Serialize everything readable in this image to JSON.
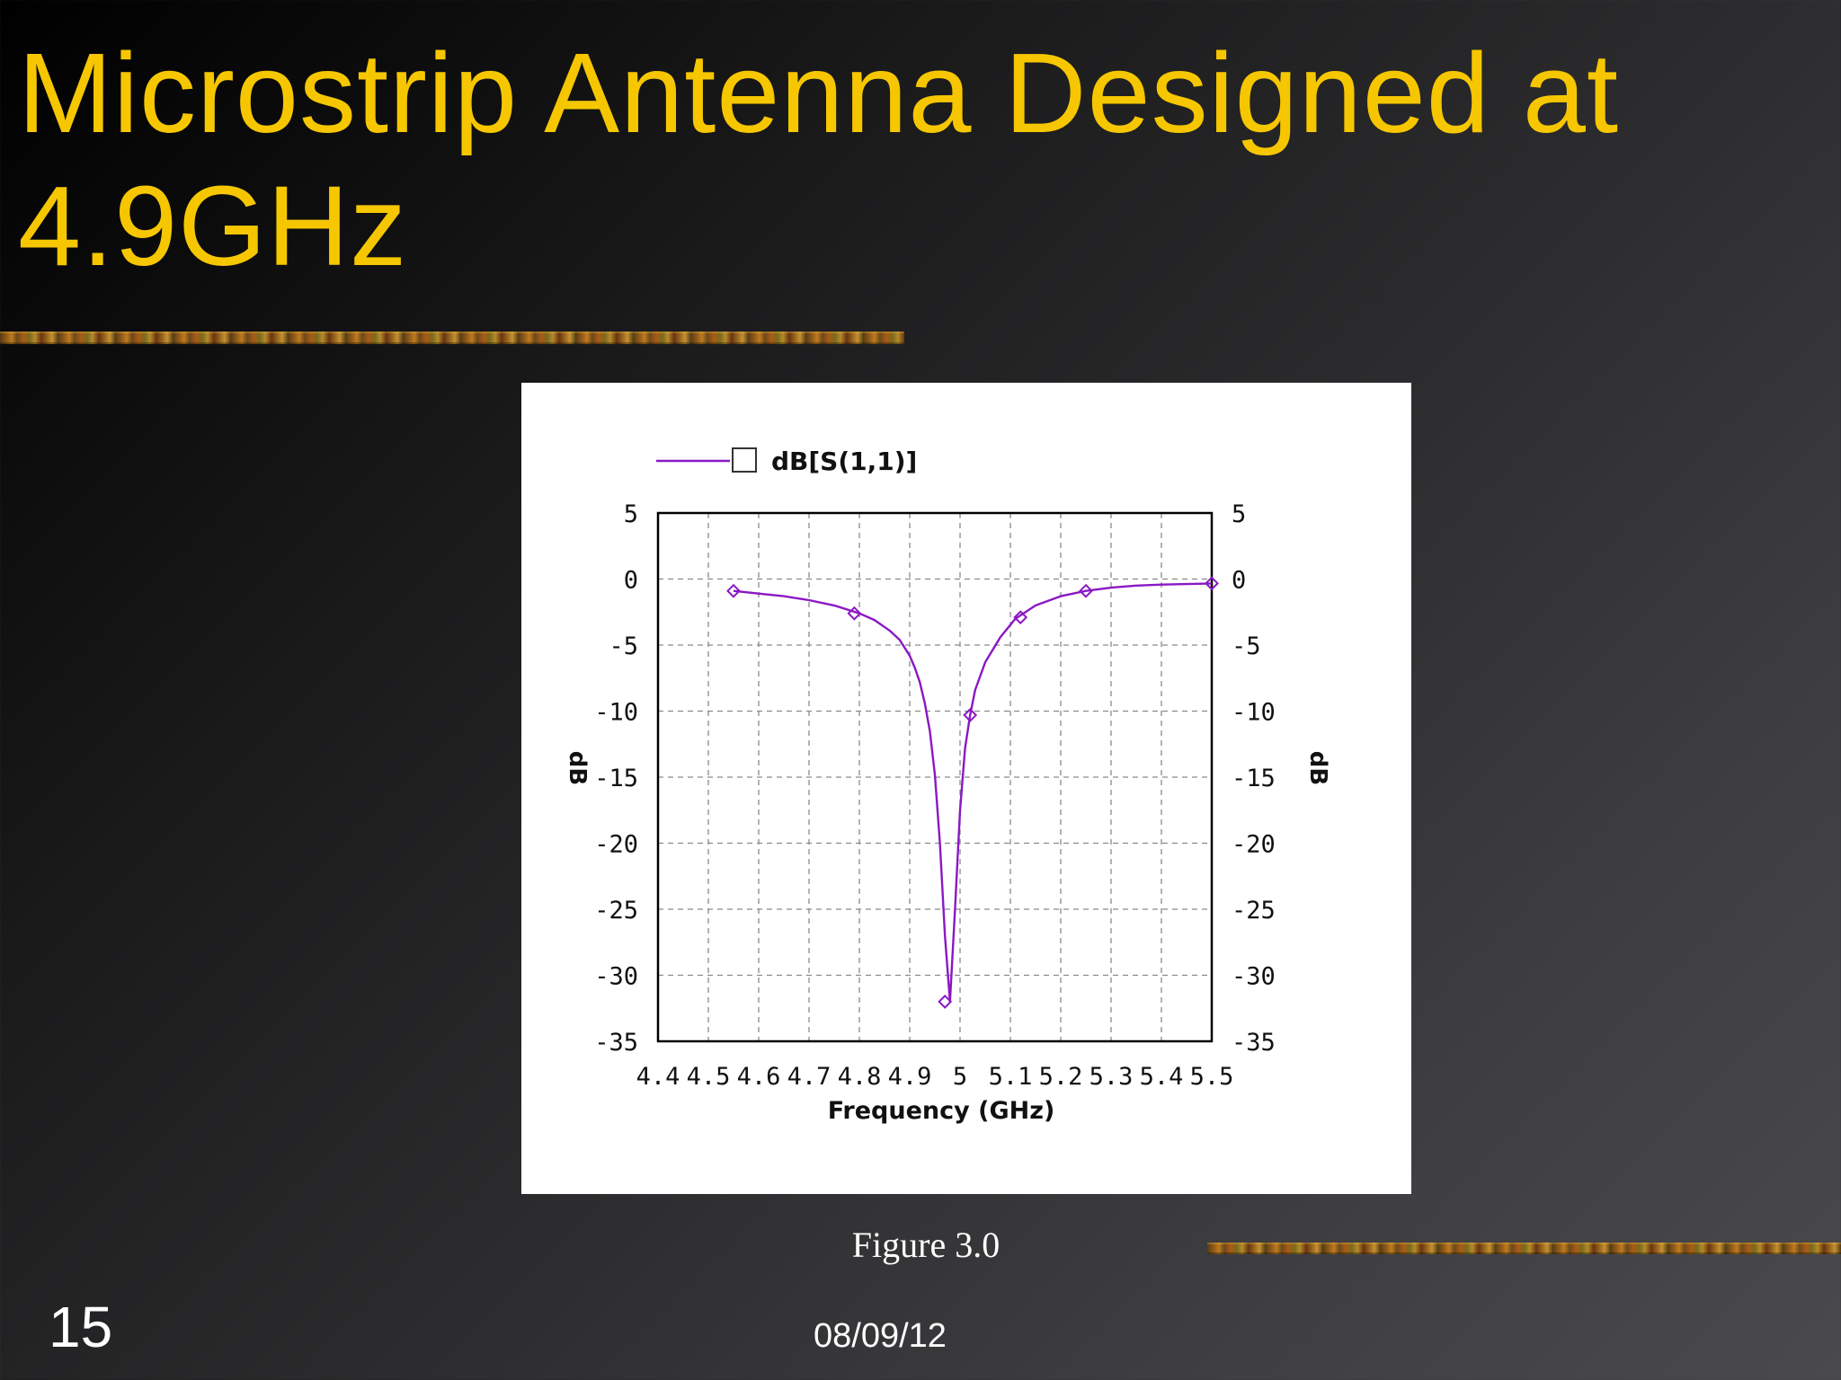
{
  "slide": {
    "title": "Microstrip Antenna Designed at 4.9GHz",
    "caption": "Figure 3.0",
    "number": "15",
    "date": "08/09/12"
  },
  "chart_data": {
    "type": "line",
    "xlabel": "Frequency (GHz)",
    "ylabel": "dB",
    "y2label": "dB",
    "xlim": [
      4.4,
      5.5
    ],
    "ylim": [
      -35,
      5
    ],
    "x_ticks": [
      "4.4",
      "4.5",
      "4.6",
      "4.7",
      "4.8",
      "4.9",
      "5",
      "5.1",
      "5.2",
      "5.3",
      "5.4",
      "5.5"
    ],
    "y_ticks": [
      "5",
      "0",
      "-5",
      "-10",
      "-15",
      "-20",
      "-25",
      "-30",
      "-35"
    ],
    "grid": true,
    "legend_position": "top-left",
    "series": [
      {
        "name": "dB[S(1,1)]",
        "color": "#8a18c4",
        "x": [
          4.55,
          4.6,
          4.65,
          4.7,
          4.75,
          4.8,
          4.83,
          4.86,
          4.88,
          4.9,
          4.91,
          4.92,
          4.93,
          4.94,
          4.95,
          4.96,
          4.97,
          4.98,
          4.99,
          5.0,
          5.01,
          5.02,
          5.03,
          5.05,
          5.08,
          5.11,
          5.15,
          5.2,
          5.25,
          5.3,
          5.35,
          5.4,
          5.45,
          5.5
        ],
        "y": [
          -0.9,
          -1.1,
          -1.3,
          -1.6,
          -2.0,
          -2.6,
          -3.1,
          -3.9,
          -4.6,
          -5.8,
          -6.7,
          -7.8,
          -9.4,
          -11.5,
          -14.8,
          -20.0,
          -27.0,
          -32.0,
          -25.0,
          -17.5,
          -12.8,
          -10.3,
          -8.4,
          -6.3,
          -4.4,
          -3.0,
          -2.0,
          -1.3,
          -0.9,
          -0.65,
          -0.5,
          -0.42,
          -0.38,
          -0.33
        ],
        "marker_x": [
          4.55,
          4.79,
          4.97,
          5.02,
          5.12,
          5.25,
          5.5
        ],
        "marker_y": [
          -0.9,
          -2.6,
          -32.0,
          -10.3,
          -2.9,
          -0.9,
          -0.33
        ]
      }
    ]
  }
}
